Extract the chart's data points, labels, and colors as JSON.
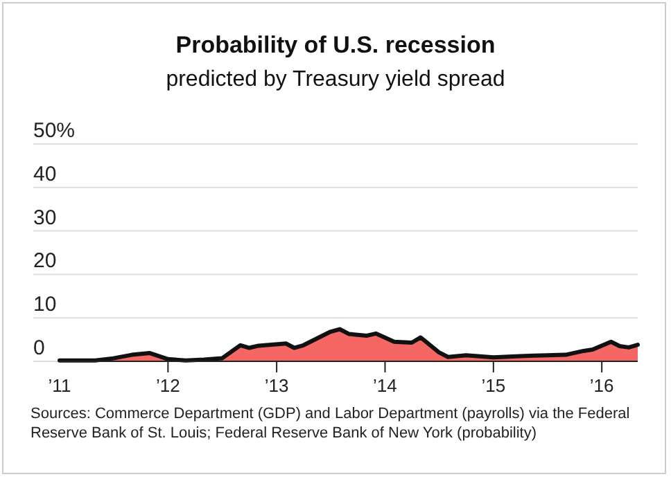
{
  "chart_data": {
    "type": "area",
    "title": "Probability of U.S. recession",
    "subtitle": "predicted by Treasury yield spread",
    "x": [
      "2011-01",
      "2011-05",
      "2011-07",
      "2011-09",
      "2011-11",
      "2012-01",
      "2012-03",
      "2012-05",
      "2012-07",
      "2012-09",
      "2012-10",
      "2012-11",
      "2013-02",
      "2013-03",
      "2013-04",
      "2013-07",
      "2013-08",
      "2013-09",
      "2013-11",
      "2013-12",
      "2014-02",
      "2014-04",
      "2014-05",
      "2014-07",
      "2014-08",
      "2014-10",
      "2015-01",
      "2015-04",
      "2015-07",
      "2015-09",
      "2015-11",
      "2015-12",
      "2016-02",
      "2016-03",
      "2016-04",
      "2016-05"
    ],
    "series": [
      {
        "color": "#f56762",
        "values": [
          0.2,
          0.2,
          0.7,
          1.5,
          1.9,
          0.5,
          0.2,
          0.4,
          0.7,
          3.7,
          3.1,
          3.6,
          4.1,
          3.1,
          3.7,
          6.8,
          7.4,
          6.3,
          5.9,
          6.4,
          4.5,
          4.3,
          5.5,
          2.1,
          1.0,
          1.4,
          0.9,
          1.2,
          1.4,
          1.5,
          2.4,
          2.7,
          4.5,
          3.5,
          3.2,
          3.8
        ]
      }
    ],
    "xlim": [
      "2011-01",
      "2016-05"
    ],
    "xticks": [
      {
        "value": "2011",
        "label": "’11"
      },
      {
        "value": "2012",
        "label": "’12"
      },
      {
        "value": "2013",
        "label": "’13"
      },
      {
        "value": "2014",
        "label": "’14"
      },
      {
        "value": "2015",
        "label": "’15"
      },
      {
        "value": "2016",
        "label": "’16"
      }
    ],
    "ylim": [
      0,
      50
    ],
    "yticks": [
      0,
      10,
      20,
      30,
      40,
      {
        "value": 50,
        "label": "50%"
      }
    ],
    "grid": "y",
    "annotations": [
      "Sources: Commerce Department (GDP) and Labor Department (payrolls) via the Federal Reserve Bank of St. Louis; Federal Reserve Bank of New York (probability)"
    ]
  }
}
